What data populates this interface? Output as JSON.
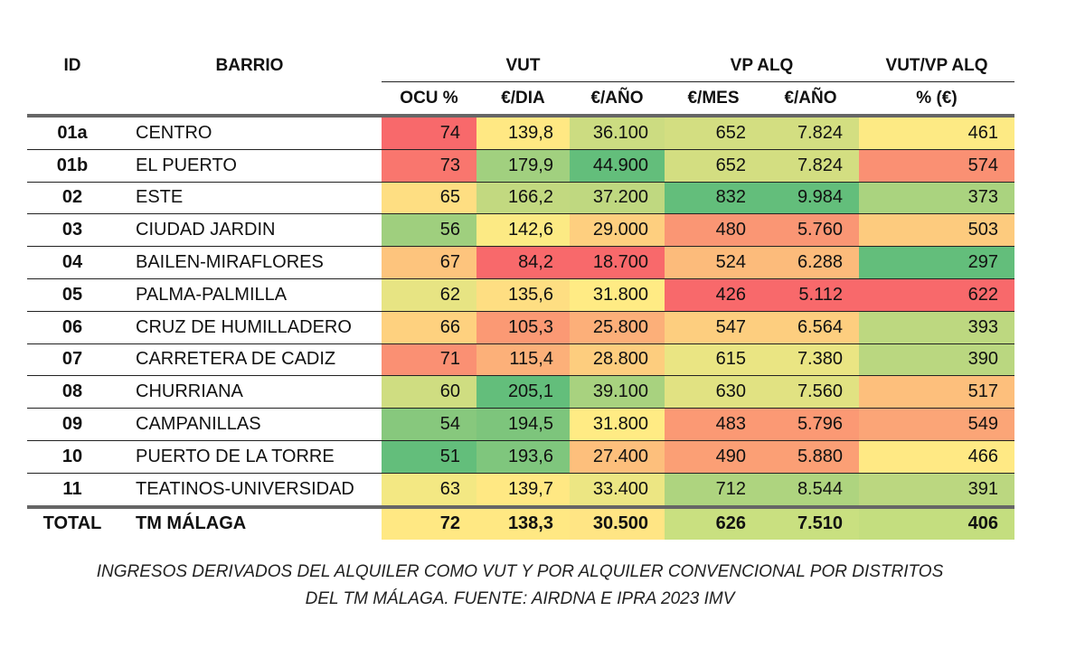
{
  "header": {
    "id": "ID",
    "barrio": "BARRIO",
    "vut": "VUT",
    "vpalq": "VP ALQ",
    "ratio": "VUT/VP ALQ",
    "sub": [
      "OCU %",
      "€/DIA",
      "€/AÑO",
      "€/MES",
      "€/AÑO",
      "% (€)"
    ]
  },
  "rows": [
    [
      "01a",
      "CENTRO",
      "74",
      "139,8",
      "36.100",
      "652",
      "7.824",
      "461"
    ],
    [
      "01b",
      "EL PUERTO",
      "73",
      "179,9",
      "44.900",
      "652",
      "7.824",
      "574"
    ],
    [
      "02",
      "ESTE",
      "65",
      "166,2",
      "37.200",
      "832",
      "9.984",
      "373"
    ],
    [
      "03",
      "CIUDAD JARDIN",
      "56",
      "142,6",
      "29.000",
      "480",
      "5.760",
      "503"
    ],
    [
      "04",
      "BAILEN-MIRAFLORES",
      "67",
      "84,2",
      "18.700",
      "524",
      "6.288",
      "297"
    ],
    [
      "05",
      "PALMA-PALMILLA",
      "62",
      "135,6",
      "31.800",
      "426",
      "5.112",
      "622"
    ],
    [
      "06",
      "CRUZ DE HUMILLADERO",
      "66",
      "105,3",
      "25.800",
      "547",
      "6.564",
      "393"
    ],
    [
      "07",
      "CARRETERA DE CADIZ",
      "71",
      "115,4",
      "28.800",
      "615",
      "7.380",
      "390"
    ],
    [
      "08",
      "CHURRIANA",
      "60",
      "205,1",
      "39.100",
      "630",
      "7.560",
      "517"
    ],
    [
      "09",
      "CAMPANILLAS",
      "54",
      "194,5",
      "31.800",
      "483",
      "5.796",
      "549"
    ],
    [
      "10",
      "PUERTO DE LA TORRE",
      "51",
      "193,6",
      "27.400",
      "490",
      "5.880",
      "466"
    ],
    [
      "11",
      "TEATINOS-UNIVERSIDAD",
      "63",
      "139,7",
      "33.400",
      "712",
      "8.544",
      "391"
    ]
  ],
  "total": [
    "TOTAL",
    "TM MÁLAGA",
    "72",
    "138,3",
    "30.500",
    "626",
    "7.510",
    "406"
  ],
  "total_colors": [
    "#FFE883",
    "#FFE883",
    "#FFE584",
    "#C9E080",
    "#C9E080",
    "#C4DE7F"
  ],
  "scale": {
    "low": "#F8696B",
    "mid": "#FFEB84",
    "high": "#63BE7B",
    "high_is_good": [
      false,
      true,
      true,
      true,
      true,
      false
    ]
  },
  "caption": [
    "INGRESOS DERIVADOS DEL ALQUILER COMO VUT Y POR ALQUILER CONVENCIONAL POR DISTRITOS",
    "DEL TM MÁLAGA. FUENTE: AIRDNA E IPRA 2023 IMV"
  ]
}
